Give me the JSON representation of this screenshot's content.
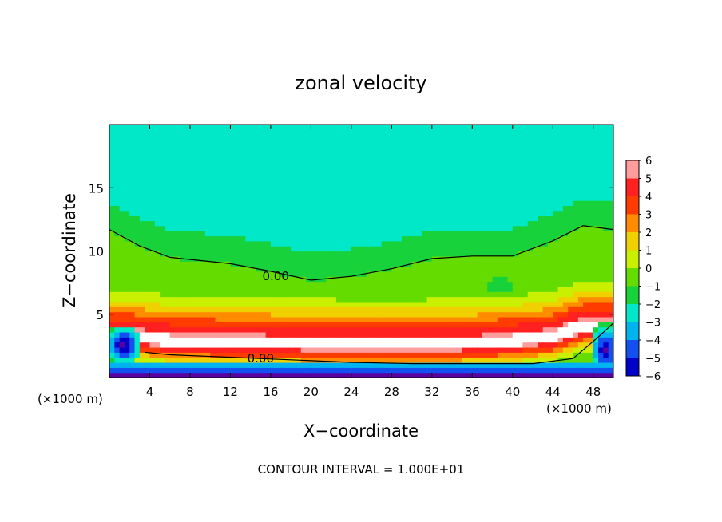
{
  "chart_data": {
    "type": "heatmap",
    "title": "zonal velocity",
    "xlabel": "X−coordinate",
    "ylabel": "Z−coordinate",
    "x_unit_left": "(×1000 m)",
    "x_unit_right": "(×1000 m)",
    "footer": "CONTOUR INTERVAL = 1.000E+01",
    "xlim": [
      0,
      50
    ],
    "ylim": [
      0,
      20
    ],
    "x_ticks": [
      4,
      8,
      12,
      16,
      20,
      24,
      28,
      32,
      36,
      40,
      44,
      48
    ],
    "x_tick_labels": [
      "4",
      "8",
      "12",
      "16",
      "20",
      "24",
      "28",
      "32",
      "36",
      "40",
      "44",
      "48"
    ],
    "y_ticks": [
      5,
      10,
      15
    ],
    "y_tick_labels": [
      "5",
      "10",
      "15"
    ],
    "grid": false,
    "colorbar": {
      "levels": [
        6,
        5,
        4,
        3,
        2,
        1,
        0,
        -1,
        -2,
        -3,
        -4,
        -5,
        -6
      ],
      "labels": [
        "6",
        "5",
        "4",
        "3",
        "2",
        "1",
        "0",
        "−1",
        "−2",
        "−3",
        "−4",
        "−5",
        "−6"
      ],
      "colors": [
        "#ff9c9c",
        "#ff2020",
        "#ff3c00",
        "#ff8c00",
        "#f0d000",
        "#c8f000",
        "#64dc00",
        "#18d23c",
        "#00e8c8",
        "#00b4f0",
        "#1450f0",
        "#0000c8",
        "#5a00a0"
      ]
    },
    "contour_labels": [
      {
        "text": "0.00",
        "x": 16.5,
        "y": 8.0
      },
      {
        "text": "0.00",
        "x": 15.0,
        "y": 1.5
      }
    ],
    "field": {
      "upper_value": -1.6,
      "jet_center": [
        [
          2,
          3.2
        ],
        [
          6,
          2.8
        ],
        [
          12,
          2.7
        ],
        [
          18,
          2.6
        ],
        [
          24,
          2.5
        ],
        [
          30,
          2.5
        ],
        [
          36,
          2.6
        ],
        [
          40,
          2.8
        ],
        [
          44,
          3.1
        ],
        [
          47,
          4.0
        ]
      ],
      "jet_peak": 6.5,
      "zero_line_upper": [
        [
          0,
          11.7
        ],
        [
          3,
          10.4
        ],
        [
          6,
          9.5
        ],
        [
          12,
          9.0
        ],
        [
          16,
          8.4
        ],
        [
          20,
          7.7
        ],
        [
          24,
          8.0
        ],
        [
          28,
          8.6
        ],
        [
          32,
          9.4
        ],
        [
          36,
          9.6
        ],
        [
          40,
          9.6
        ],
        [
          44,
          10.8
        ],
        [
          47,
          12.0
        ],
        [
          50,
          11.7
        ]
      ],
      "zero_line_lower": [
        [
          3.5,
          2.0
        ],
        [
          6,
          1.8
        ],
        [
          12,
          1.6
        ],
        [
          18,
          1.4
        ],
        [
          24,
          1.2
        ],
        [
          30,
          1.1
        ],
        [
          36,
          1.1
        ],
        [
          42,
          1.1
        ],
        [
          46,
          1.5
        ],
        [
          48.5,
          3.2
        ],
        [
          50,
          4.3
        ]
      ]
    }
  }
}
